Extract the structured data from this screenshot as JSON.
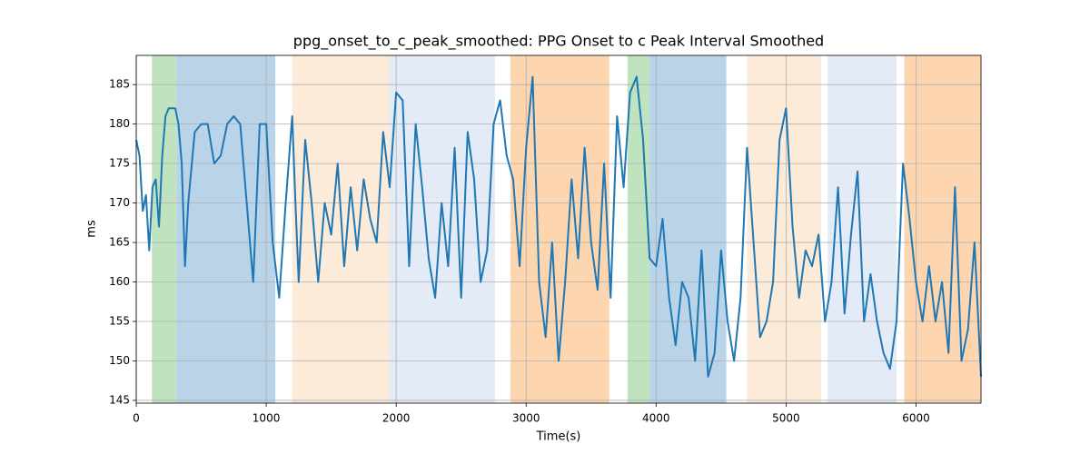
{
  "chart_data": {
    "type": "line",
    "title": "ppg_onset_to_c_peak_smoothed: PPG Onset to c Peak Interval Smoothed",
    "x_label": "Time(s)",
    "y_label": "ms",
    "xlim": [
      0,
      6500
    ],
    "ylim": [
      144.65,
      188.7
    ],
    "xticks": [
      0,
      1000,
      2000,
      3000,
      4000,
      5000,
      6000
    ],
    "yticks": [
      145,
      150,
      155,
      160,
      165,
      170,
      175,
      180,
      185
    ],
    "grid": true,
    "spans": [
      {
        "x": [
          120,
          310
        ],
        "color": "#bfe2bf"
      },
      {
        "x": [
          310,
          1070
        ],
        "color": "#b9d4e8"
      },
      {
        "x": [
          1200,
          1950
        ],
        "color": "#fdebd9"
      },
      {
        "x": [
          1950,
          2760
        ],
        "color": "#e3ebf6"
      },
      {
        "x": [
          2880,
          3640
        ],
        "color": "#fdd6b0"
      },
      {
        "x": [
          3780,
          3950
        ],
        "color": "#bfe2bf"
      },
      {
        "x": [
          3950,
          4540
        ],
        "color": "#b9d4e8"
      },
      {
        "x": [
          4700,
          5270
        ],
        "color": "#fdebd9"
      },
      {
        "x": [
          5320,
          5850
        ],
        "color": "#e3ebf6"
      },
      {
        "x": [
          5910,
          6500
        ],
        "color": "#fdd6b0"
      }
    ],
    "series": [
      {
        "color": "#1f77b4",
        "x": [
          0,
          25,
          50,
          75,
          100,
          125,
          150,
          175,
          200,
          225,
          250,
          300,
          325,
          350,
          375,
          400,
          450,
          500,
          550,
          600,
          650,
          700,
          750,
          800,
          850,
          900,
          950,
          1000,
          1050,
          1100,
          1150,
          1200,
          1225,
          1250,
          1300,
          1350,
          1400,
          1450,
          1500,
          1550,
          1600,
          1650,
          1700,
          1750,
          1800,
          1850,
          1900,
          1950,
          2000,
          2050,
          2100,
          2150,
          2200,
          2250,
          2300,
          2350,
          2400,
          2450,
          2500,
          2550,
          2600,
          2650,
          2700,
          2750,
          2800,
          2850,
          2900,
          2950,
          3000,
          3050,
          3100,
          3150,
          3200,
          3250,
          3300,
          3350,
          3400,
          3450,
          3500,
          3550,
          3600,
          3650,
          3700,
          3750,
          3800,
          3850,
          3900,
          3950,
          4000,
          4050,
          4100,
          4150,
          4200,
          4250,
          4300,
          4350,
          4400,
          4450,
          4500,
          4550,
          4600,
          4650,
          4700,
          4750,
          4800,
          4850,
          4900,
          4950,
          5000,
          5050,
          5100,
          5150,
          5200,
          5250,
          5300,
          5350,
          5400,
          5450,
          5500,
          5550,
          5600,
          5650,
          5700,
          5750,
          5800,
          5850,
          5900,
          5950,
          6000,
          6050,
          6100,
          6150,
          6200,
          6250,
          6300,
          6350,
          6400,
          6450,
          6500
        ],
        "values": [
          178,
          176,
          169,
          171,
          164,
          172,
          173,
          167,
          176,
          181,
          182,
          182,
          180,
          175,
          162,
          170,
          179,
          180,
          180,
          175,
          176,
          180,
          181,
          180,
          170,
          160,
          180,
          180,
          165,
          158,
          170,
          181,
          170,
          160,
          178,
          170,
          160,
          170,
          166,
          175,
          162,
          172,
          164,
          173,
          168,
          165,
          179,
          172,
          184,
          183,
          162,
          180,
          172,
          163,
          158,
          170,
          162,
          177,
          158,
          179,
          173,
          160,
          164,
          180,
          183,
          176,
          173,
          162,
          177,
          186,
          160,
          153,
          165,
          150,
          160,
          173,
          163,
          177,
          165,
          159,
          175,
          158,
          181,
          172,
          184,
          186,
          178,
          163,
          162,
          168,
          158,
          152,
          160,
          158,
          150,
          164,
          148,
          151,
          164,
          155,
          150,
          158,
          177,
          165,
          153,
          155,
          160,
          178,
          182,
          167,
          158,
          164,
          162,
          166,
          155,
          160,
          172,
          156,
          166,
          174,
          155,
          161,
          155,
          151,
          149,
          155,
          175,
          168,
          160,
          155,
          162,
          155,
          160,
          151,
          172,
          150,
          154,
          165,
          148
        ]
      }
    ]
  }
}
